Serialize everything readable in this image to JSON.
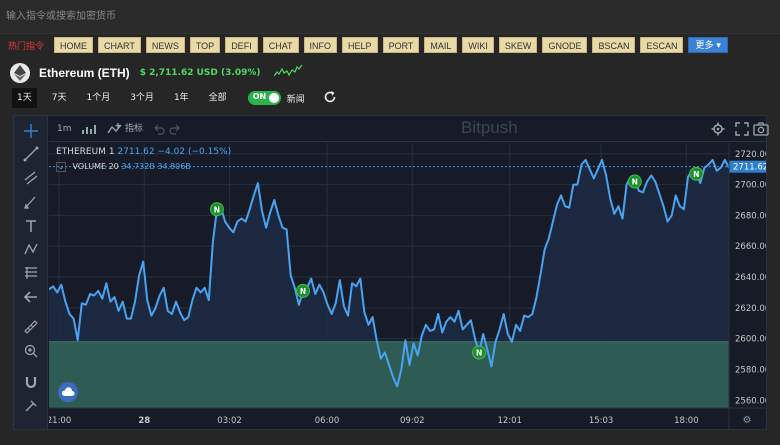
{
  "search": {
    "placeholder": "输入指令或搜索加密货币"
  },
  "nav": {
    "hot_label": "热门指令",
    "items": [
      "HOME",
      "CHART",
      "NEWS",
      "TOP",
      "DEFI",
      "CHAT",
      "INFO",
      "HELP",
      "PORT",
      "MAIL",
      "WIKI",
      "SKEW",
      "GNODE",
      "BSCAN",
      "ESCAN"
    ],
    "more_label": "更多 ▾"
  },
  "coin": {
    "name": "Ethereum (ETH)",
    "price": "$ 2,711.62 USD (3.09%)"
  },
  "ranges": {
    "tabs": [
      "1天",
      "7天",
      "1个月",
      "3个月",
      "1年",
      "全部"
    ],
    "active": 0,
    "toggle_label": "ON",
    "news_label": "新闻"
  },
  "toolbar": {
    "interval": "1m",
    "indicators_label": "指标",
    "watermark": "Bitpush"
  },
  "legend": {
    "symbol": "ETHEREUM",
    "interval": "1",
    "values": "2711.62  −4.02 (−0.15%)",
    "volume_label": "VOLUME 20",
    "volume_values": "34.732B  34.806B"
  },
  "chart_data": {
    "type": "line",
    "series": [
      {
        "values": [
          2632,
          2634,
          2630,
          2635,
          2624,
          2616,
          2613,
          2599,
          2623,
          2622,
          2629,
          2628,
          2631,
          2626,
          2636,
          2624,
          2627,
          2618,
          2624,
          2613,
          2613,
          2624,
          2641,
          2650,
          2625,
          2615,
          2620,
          2628,
          2633,
          2618,
          2616,
          2624,
          2617,
          2612,
          2614,
          2625,
          2633,
          2630,
          2633,
          2625,
          2663,
          2684,
          2685,
          2676,
          2672,
          2669,
          2676,
          2678,
          2676,
          2684,
          2693,
          2701,
          2683,
          2672,
          2682,
          2690,
          2680,
          2672,
          2671,
          2641,
          2633,
          2622,
          2631,
          2633,
          2639,
          2629,
          2635,
          2630,
          2622,
          2616,
          2623,
          2638,
          2621,
          2615,
          2636,
          2634,
          2639,
          2617,
          2609,
          2614,
          2599,
          2587,
          2591,
          2583,
          2575,
          2569,
          2580,
          2599,
          2583,
          2597,
          2589,
          2602,
          2609,
          2605,
          2606,
          2616,
          2604,
          2611,
          2614,
          2611,
          2618,
          2606,
          2609,
          2612,
          2600,
          2591,
          2603,
          2593,
          2582,
          2598,
          2606,
          2616,
          2603,
          2598,
          2609,
          2605,
          2615,
          2614,
          2616,
          2627,
          2642,
          2658,
          2665,
          2676,
          2687,
          2693,
          2686,
          2685,
          2700,
          2700,
          2713,
          2716,
          2710,
          2704,
          2710,
          2716,
          2706,
          2691,
          2681,
          2686,
          2678,
          2700,
          2705,
          2702,
          2696,
          2695,
          2702,
          2706,
          2702,
          2694,
          2686,
          2676,
          2680,
          2693,
          2686,
          2684,
          2705,
          2709,
          2707,
          2701,
          2711,
          2713,
          2716,
          2709,
          2711,
          2716,
          2711
        ],
        "color": "#4aa3f0"
      }
    ],
    "x_tick_labels": [
      "21:00",
      "28",
      "03:02",
      "06:00",
      "09:02",
      "12:01",
      "15:03",
      "18:00"
    ],
    "y_ticks": [
      2560,
      2580,
      2600,
      2620,
      2640,
      2660,
      2680,
      2700,
      2720
    ],
    "ylim": [
      2555,
      2727
    ],
    "last_price": "2711.62",
    "volume_level": 2598,
    "news_markers": [
      {
        "label": "N",
        "index": 41
      },
      {
        "label": "N",
        "index": 62
      },
      {
        "label": "N",
        "index": 105
      },
      {
        "label": "N",
        "index": 143
      },
      {
        "label": "N",
        "index": 158
      }
    ],
    "grid": true
  },
  "colors": {
    "accent": "#3b82d6",
    "up": "#4cd964",
    "line": "#4aa3f0",
    "volume_fill": "#2e5b54",
    "nav_button": "#e8d9a8"
  }
}
